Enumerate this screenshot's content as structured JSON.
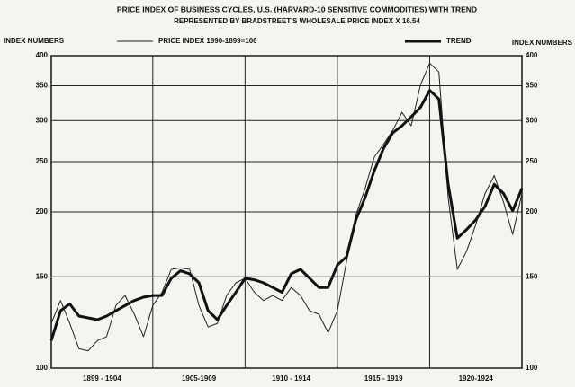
{
  "chart_data": {
    "type": "line",
    "title": "PRICE INDEX OF BUSINESS CYCLES, U.S. (HARVARD-10 SENSITIVE COMMODITIES) WITH TREND",
    "subtitle": "REPRESENTED BY BRADSTREET'S WHOLESALE PRICE INDEX X 16.54",
    "y_label": "INDEX NUMBERS",
    "y2_label": "INDEX NUMBERS",
    "log_scale": true,
    "grid": true,
    "xlim": [
      1899.5,
      1925
    ],
    "xticks": [
      1905,
      1910,
      1915,
      1920
    ],
    "periods": [
      {
        "label": "1899 - 1904",
        "start": 1899.5,
        "end": 1905
      },
      {
        "label": "1905-1909",
        "start": 1905,
        "end": 1910
      },
      {
        "label": "1910 - 1914",
        "start": 1910,
        "end": 1915
      },
      {
        "label": "1915 - 1919",
        "start": 1915,
        "end": 1920
      },
      {
        "label": "1920-1924",
        "start": 1920,
        "end": 1925
      }
    ],
    "ylim": [
      100,
      400
    ],
    "yticks": [
      100,
      150,
      200,
      250,
      300,
      350,
      400
    ],
    "x": [
      1899.5,
      1900,
      1900.5,
      1901,
      1901.5,
      1902,
      1902.5,
      1903,
      1903.5,
      1904,
      1904.5,
      1905,
      1905.5,
      1906,
      1906.5,
      1907,
      1907.5,
      1908,
      1908.5,
      1909,
      1909.5,
      1910,
      1910.5,
      1911,
      1911.5,
      1912,
      1912.5,
      1913,
      1913.5,
      1914,
      1914.5,
      1915,
      1915.5,
      1916,
      1916.5,
      1917,
      1917.5,
      1918,
      1918.5,
      1919,
      1919.5,
      1920,
      1920.5,
      1921,
      1921.5,
      1922,
      1922.5,
      1923,
      1923.5,
      1924,
      1924.5,
      1925
    ],
    "series": [
      {
        "name": "PRICE INDEX 1890-1899=100",
        "color": "#222",
        "width": 1,
        "values": [
          122,
          135,
          122,
          109,
          108,
          113,
          115,
          132,
          138,
          127,
          115,
          132,
          140,
          155,
          156,
          155,
          132,
          120,
          122,
          138,
          146,
          149,
          140,
          135,
          138,
          135,
          143,
          138,
          129,
          127,
          117,
          129,
          161,
          197,
          222,
          255,
          270,
          287,
          311,
          293,
          351,
          387,
          372,
          213,
          155,
          168,
          189,
          217,
          235,
          209,
          181,
          217
        ]
      },
      {
        "name": "TREND",
        "color": "#111",
        "width": 3,
        "values": [
          113,
          129,
          133,
          126,
          125,
          124,
          126,
          129,
          132,
          135,
          137,
          138,
          138,
          149,
          154,
          152,
          146,
          129,
          124,
          132,
          140,
          149,
          148,
          146,
          143,
          140,
          152,
          155,
          149,
          143,
          143,
          158,
          164,
          193,
          213,
          240,
          265,
          284,
          293,
          305,
          318,
          343,
          330,
          226,
          178,
          185,
          193,
          205,
          226,
          217,
          201,
          222
        ]
      }
    ]
  }
}
